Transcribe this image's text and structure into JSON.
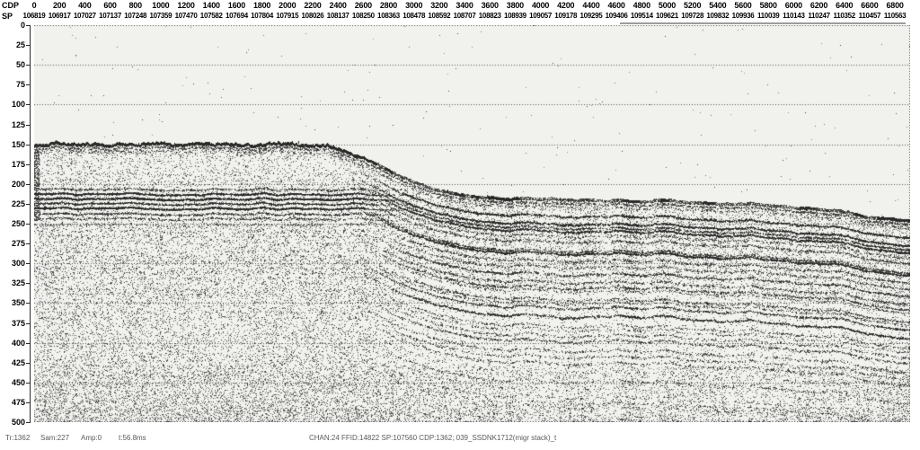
{
  "header": {
    "cdp_label": "CDP",
    "sp_label": "SP",
    "cdp_values": [
      "0",
      "200",
      "400",
      "600",
      "800",
      "1000",
      "1200",
      "1400",
      "1600",
      "1800",
      "2000",
      "2200",
      "2400",
      "2600",
      "2800",
      "3000",
      "3200",
      "3400",
      "3600",
      "3800",
      "4000",
      "4200",
      "4400",
      "4600",
      "4800",
      "5000",
      "5200",
      "5400",
      "5600",
      "5800",
      "6000",
      "6200",
      "6400",
      "6600",
      "6800"
    ],
    "sp_values": [
      "106819",
      "106917",
      "107027",
      "107137",
      "107248",
      "107359",
      "107470",
      "107582",
      "107694",
      "107804",
      "107915",
      "108026",
      "108137",
      "108250",
      "108363",
      "108478",
      "108592",
      "108707",
      "108823",
      "108939",
      "109057",
      "109178",
      "109295",
      "109406",
      "109514",
      "109621",
      "109728",
      "109832",
      "109936",
      "110039",
      "110143",
      "110247",
      "110352",
      "110457",
      "110563"
    ]
  },
  "time_axis": {
    "min": 0,
    "max": 500,
    "tick_step": 25,
    "grid_step": 50,
    "tick_labels": [
      "0",
      "25",
      "50",
      "75",
      "100",
      "125",
      "150",
      "175",
      "200",
      "225",
      "250",
      "275",
      "300",
      "325",
      "350",
      "375",
      "400",
      "425",
      "450",
      "475",
      "500"
    ]
  },
  "status_bar": {
    "trace": "Tr:1362",
    "sample": "Sam:227",
    "amplitude": "Amp:0",
    "time": "t:56.8ms",
    "header_info": "CHAN:24 FFID:14822 SP:107560 CDP:1362; 039_SSDNK1712(migr stack)_t"
  },
  "colors": {
    "page_bg": "#ffffff",
    "plot_bg": "#f1f1ee",
    "axis": "#2a2a2a",
    "grid_dot": "#464646",
    "header_text": "#000000",
    "status_text": "#5a5a5a",
    "seismic_ink": "#181816",
    "extent_bar": "#9c9c9c"
  },
  "seismic": {
    "seed": 20240613,
    "cdp_max": 6920,
    "time_max": 500,
    "seafloor_points": [
      [
        0,
        151
      ],
      [
        300,
        150
      ],
      [
        600,
        151
      ],
      [
        900,
        150
      ],
      [
        1200,
        151
      ],
      [
        1500,
        150
      ],
      [
        1800,
        151
      ],
      [
        2100,
        150
      ],
      [
        2300,
        152
      ],
      [
        2450,
        158
      ],
      [
        2600,
        168
      ],
      [
        2750,
        180
      ],
      [
        2900,
        191
      ],
      [
        3050,
        200
      ],
      [
        3200,
        209
      ],
      [
        3350,
        214
      ],
      [
        3500,
        217
      ],
      [
        3700,
        219
      ],
      [
        3900,
        220
      ],
      [
        4100,
        219
      ],
      [
        4300,
        221
      ],
      [
        4500,
        220
      ],
      [
        4700,
        222
      ],
      [
        4900,
        221
      ],
      [
        5100,
        223
      ],
      [
        5300,
        224
      ],
      [
        5500,
        225
      ],
      [
        5700,
        226
      ],
      [
        5900,
        228
      ],
      [
        6100,
        231
      ],
      [
        6300,
        234
      ],
      [
        6500,
        238
      ],
      [
        6700,
        244
      ],
      [
        6920,
        250
      ]
    ],
    "shelf_reflectors": [
      [
        187,
        0.35
      ],
      [
        196,
        0.4
      ],
      [
        207,
        0.9
      ],
      [
        213,
        1.5
      ],
      [
        219,
        1.7
      ],
      [
        225,
        1.2
      ],
      [
        231,
        1.6
      ],
      [
        238,
        1.0
      ],
      [
        244,
        0.8
      ],
      [
        252,
        0.5
      ],
      [
        260,
        0.4
      ]
    ],
    "conformal_blend": [
      2480,
      3050
    ],
    "grid_step": 50
  }
}
